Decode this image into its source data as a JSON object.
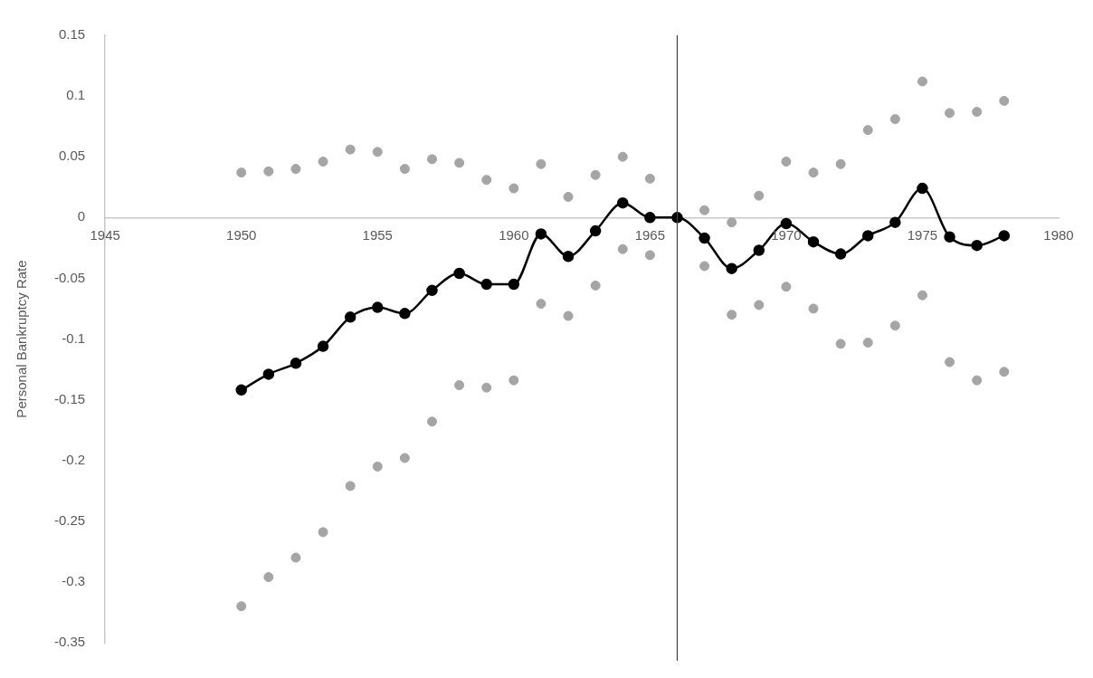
{
  "chart_data": {
    "type": "line",
    "ylabel": "Personal Bankruptcy Rate",
    "x": [
      1950,
      1951,
      1952,
      1953,
      1954,
      1955,
      1956,
      1957,
      1958,
      1959,
      1960,
      1961,
      1962,
      1963,
      1964,
      1965,
      1966,
      1967,
      1968,
      1969,
      1970,
      1971,
      1972,
      1973,
      1974,
      1975,
      1976,
      1977,
      1978
    ],
    "series": [
      {
        "type": "scatter",
        "color": "#a5a5a5",
        "values": [
          0.037,
          0.038,
          0.04,
          0.046,
          0.056,
          0.054,
          0.04,
          0.048,
          0.045,
          0.031,
          0.024,
          0.044,
          0.017,
          0.035,
          0.05,
          0.032,
          null,
          0.006,
          -0.004,
          0.018,
          0.046,
          0.037,
          0.044,
          0.072,
          0.081,
          0.112,
          0.086,
          0.087,
          0.096
        ]
      },
      {
        "type": "line",
        "color": "#000000",
        "values": [
          -0.142,
          -0.129,
          -0.12,
          -0.106,
          -0.082,
          -0.074,
          -0.079,
          -0.06,
          -0.046,
          -0.055,
          -0.055,
          -0.0135,
          -0.032,
          -0.011,
          0.012,
          0,
          0,
          -0.017,
          -0.042,
          -0.027,
          -0.005,
          -0.02,
          -0.03,
          -0.015,
          -0.004,
          0.024,
          -0.016,
          -0.023,
          -0.015
        ]
      },
      {
        "type": "scatter",
        "color": "#a5a5a5",
        "values": [
          -0.32,
          -0.296,
          -0.28,
          -0.259,
          -0.221,
          -0.205,
          -0.198,
          -0.168,
          -0.138,
          -0.14,
          -0.134,
          -0.071,
          -0.081,
          -0.056,
          -0.026,
          -0.031,
          null,
          -0.04,
          -0.08,
          -0.072,
          -0.057,
          -0.075,
          -0.104,
          -0.103,
          -0.089,
          -0.064,
          -0.119,
          -0.134,
          -0.127
        ]
      }
    ],
    "marker": "circle",
    "line_style": "solid",
    "xlim": [
      1945,
      1980
    ],
    "xticks": [
      1945,
      1950,
      1955,
      1960,
      1965,
      1970,
      1975,
      1980
    ],
    "ylim": [
      -0.35,
      0.15
    ],
    "yticks": [
      -0.35,
      -0.3,
      -0.25,
      -0.2,
      -0.15,
      -0.1,
      -0.05,
      0,
      0.05,
      0.1,
      0.15
    ],
    "grid": false,
    "legend": false,
    "ref_lines": [
      {
        "axis": "x",
        "value": 1966,
        "color": "#404040"
      }
    ]
  }
}
